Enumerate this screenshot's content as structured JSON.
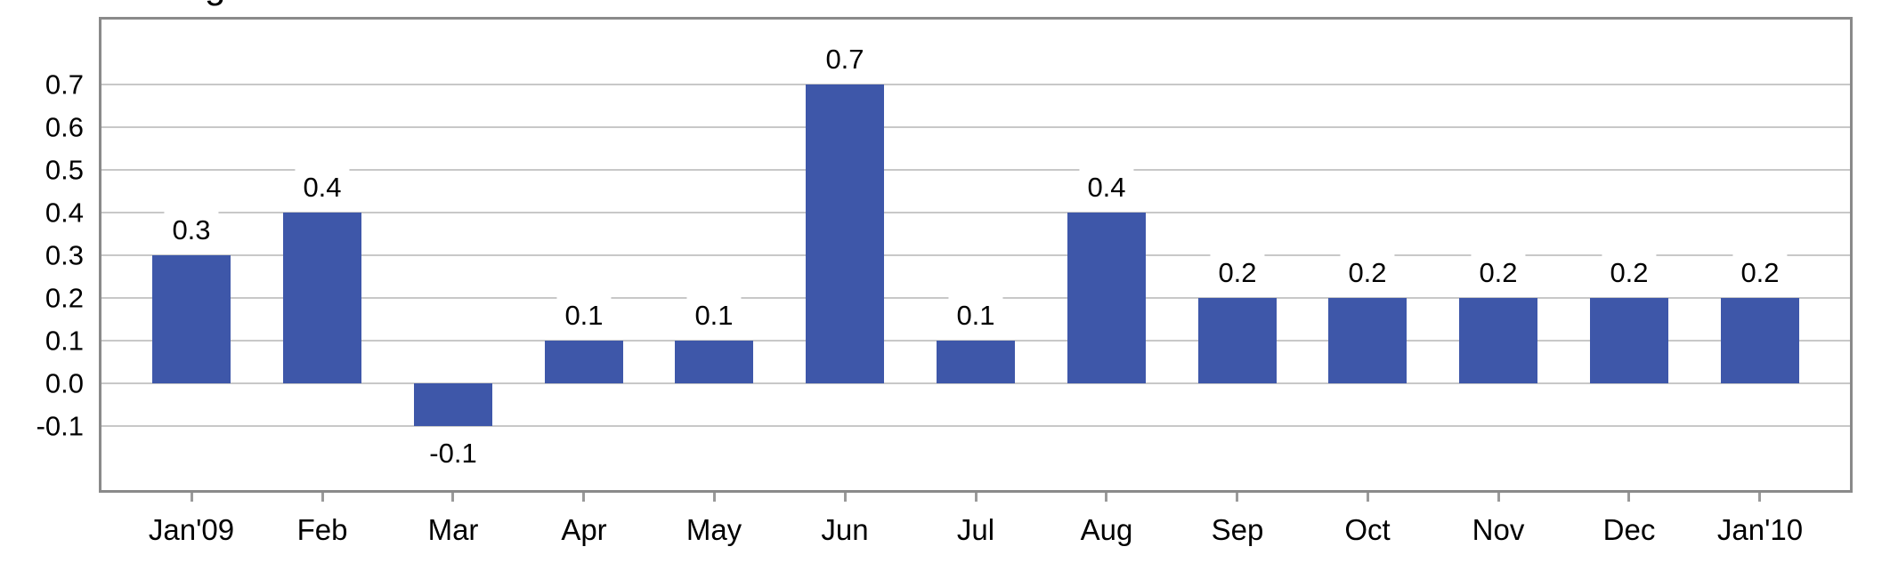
{
  "clipped_top_text": {
    "glyph": "g"
  },
  "chart_data": {
    "type": "bar",
    "title": "",
    "xlabel": "",
    "ylabel": "",
    "categories": [
      "Jan'09",
      "Feb",
      "Mar",
      "Apr",
      "May",
      "Jun",
      "Jul",
      "Aug",
      "Sep",
      "Oct",
      "Nov",
      "Dec",
      "Jan'10"
    ],
    "values": [
      0.3,
      0.4,
      -0.1,
      0.1,
      0.1,
      0.7,
      0.1,
      0.4,
      0.2,
      0.2,
      0.2,
      0.2,
      0.2
    ],
    "bar_labels": [
      "0.3",
      "0.4",
      "-0.1",
      "0.1",
      "0.1",
      "0.7",
      "0.1",
      "0.4",
      "0.2",
      "0.2",
      "0.2",
      "0.2",
      "0.2"
    ],
    "y_tick_labels": [
      "0.7",
      "0.6",
      "0.5",
      "0.4",
      "0.3",
      "0.2",
      "0.1",
      "0.0",
      "-0.1"
    ],
    "y_tick_values": [
      0.7,
      0.6,
      0.5,
      0.4,
      0.3,
      0.2,
      0.1,
      0.0,
      -0.1
    ],
    "ylim": [
      -0.25,
      0.85
    ],
    "grid": "horizontal",
    "legend": "none",
    "colors": {
      "bar": "#3E57A9",
      "grid": "#c8c8c8",
      "border": "#8a8a8a",
      "tick": "#9a9a9a",
      "text": "#000000",
      "background": "#ffffff"
    }
  }
}
